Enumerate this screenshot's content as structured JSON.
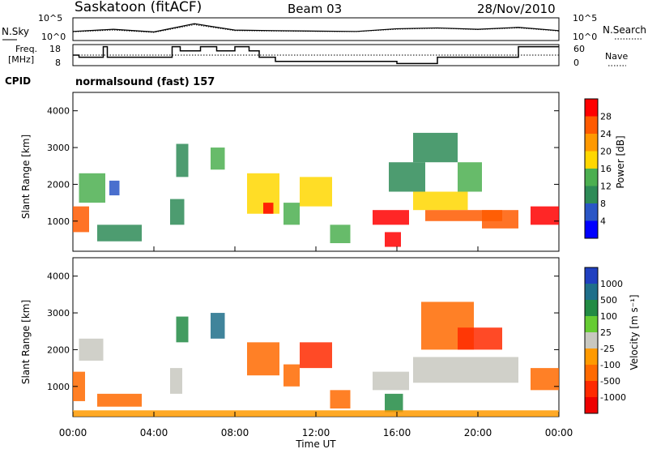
{
  "header": {
    "station": "Saskatoon (fitACF)",
    "beam": "Beam 03",
    "date": "28/Nov/2010"
  },
  "strip": {
    "nsky_label": "N.Sky",
    "nsearch_label": "N.Search",
    "freq_label": "Freq.",
    "freq_unit": "[MHz]",
    "nave_label": "Nave",
    "cpid_label": "CPID",
    "cpid_value": "normalsound (fast) 157",
    "noise_ticks": [
      "10^5",
      "10^0"
    ],
    "freq_ticks": [
      "18",
      "8"
    ],
    "nave_ticks": [
      "60",
      "0"
    ]
  },
  "x_axis": {
    "label": "Time UT",
    "ticks": [
      "00:00",
      "04:00",
      "08:00",
      "12:00",
      "16:00",
      "20:00",
      "00:00"
    ]
  },
  "y_axis": {
    "label": "Slant Range [km]",
    "ticks": [
      "4000",
      "3000",
      "2000",
      "1000"
    ]
  },
  "power_scale": {
    "label": "Power [dB]",
    "ticks": [
      "28",
      "24",
      "20",
      "16",
      "12",
      "8",
      "4"
    ],
    "colors": [
      "#ff0000",
      "#ff5a00",
      "#ff9900",
      "#ffd700",
      "#4caf50",
      "#2e8b57",
      "#2a56c6",
      "#0000ff"
    ]
  },
  "velocity_scale": {
    "label": "Velocity [m s⁻¹]",
    "ticks": [
      "1000",
      "500",
      "100",
      "25",
      "-25",
      "-100",
      "-500",
      "-1000"
    ],
    "colors": [
      "#2040c0",
      "#1f6f8a",
      "#228b44",
      "#66cc33",
      "#c8c8c0",
      "#ff9a00",
      "#ff6a00",
      "#ff2a00",
      "#ee0000"
    ]
  },
  "chart_data": [
    {
      "type": "line",
      "title": "Saskatoon (fitACF)",
      "ylabel": "N.Sky",
      "x": [
        0,
        2,
        4,
        6,
        8,
        10,
        12,
        14,
        16,
        18,
        20,
        22,
        24
      ],
      "series": [
        {
          "name": "N.Sky",
          "values": [
            100,
            300,
            80,
            5000,
            200,
            150,
            120,
            100,
            400,
            600,
            300,
            800,
            150
          ]
        },
        {
          "name": "N.Search",
          "values": [
            80,
            200,
            60,
            3000,
            150,
            120,
            100,
            90,
            300,
            500,
            250,
            600,
            120
          ]
        }
      ],
      "ylim": [
        1,
        100000
      ]
    },
    {
      "type": "line",
      "ylabel": "Freq. [MHz]",
      "x": [
        0,
        0.3,
        1.5,
        1.7,
        3,
        4.9,
        5.3,
        6.3,
        7.1,
        8,
        8.7,
        9.2,
        10,
        12,
        14,
        16,
        17,
        18,
        19,
        20,
        21,
        22,
        22.3,
        24
      ],
      "series": [
        {
          "name": "Freq.",
          "values": [
            13,
            12,
            17,
            12,
            12,
            17,
            15,
            17,
            15,
            17,
            15,
            12,
            10,
            10,
            10,
            9,
            9,
            12,
            12,
            12,
            12,
            17,
            17,
            17
          ]
        },
        {
          "name": "Nave",
          "values": [
            30,
            30,
            30,
            30,
            30,
            30,
            30,
            30,
            30,
            30,
            30,
            30,
            30,
            30,
            30,
            30,
            30,
            30,
            30,
            30,
            30,
            30,
            30,
            30
          ]
        }
      ],
      "ylim": [
        8,
        18
      ]
    },
    {
      "type": "heatmap",
      "ylabel": "Slant Range [km]",
      "xlabel": "",
      "ylim": [
        180,
        4500
      ],
      "xlim": [
        0,
        24
      ],
      "value_label": "Power [dB]",
      "zlim": [
        0,
        30
      ],
      "patches": [
        {
          "t0": 0.0,
          "t1": 0.8,
          "r0": 700,
          "r1": 1400,
          "v": 24
        },
        {
          "t0": 0.3,
          "t1": 1.6,
          "r0": 1500,
          "r1": 2300,
          "v": 10
        },
        {
          "t0": 1.2,
          "t1": 3.4,
          "r0": 450,
          "r1": 900,
          "v": 7
        },
        {
          "t0": 1.8,
          "t1": 2.3,
          "r0": 1700,
          "r1": 2100,
          "v": 6
        },
        {
          "t0": 4.8,
          "t1": 5.5,
          "r0": 900,
          "r1": 1600,
          "v": 8
        },
        {
          "t0": 5.1,
          "t1": 5.7,
          "r0": 2200,
          "r1": 3100,
          "v": 9
        },
        {
          "t0": 6.8,
          "t1": 7.5,
          "r0": 2400,
          "r1": 3000,
          "v": 12
        },
        {
          "t0": 8.6,
          "t1": 10.2,
          "r0": 1200,
          "r1": 2300,
          "v": 16
        },
        {
          "t0": 9.4,
          "t1": 9.9,
          "r0": 1200,
          "r1": 1500,
          "v": 26
        },
        {
          "t0": 10.4,
          "t1": 11.2,
          "r0": 900,
          "r1": 1500,
          "v": 12
        },
        {
          "t0": 11.2,
          "t1": 12.8,
          "r0": 1400,
          "r1": 2200,
          "v": 14
        },
        {
          "t0": 12.7,
          "t1": 13.7,
          "r0": 400,
          "r1": 900,
          "v": 10
        },
        {
          "t0": 14.8,
          "t1": 16.6,
          "r0": 900,
          "r1": 1300,
          "v": 27
        },
        {
          "t0": 15.4,
          "t1": 16.2,
          "r0": 300,
          "r1": 700,
          "v": 28
        },
        {
          "t0": 16.8,
          "t1": 19.5,
          "r0": 1300,
          "r1": 1800,
          "v": 14
        },
        {
          "t0": 17.4,
          "t1": 21.2,
          "r0": 1000,
          "r1": 1300,
          "v": 24
        },
        {
          "t0": 19.0,
          "t1": 20.2,
          "r0": 1800,
          "r1": 2600,
          "v": 10
        },
        {
          "t0": 20.2,
          "t1": 22.0,
          "r0": 800,
          "r1": 1300,
          "v": 22
        },
        {
          "t0": 22.6,
          "t1": 24.0,
          "r0": 900,
          "r1": 1400,
          "v": 26
        },
        {
          "t0": 15.6,
          "t1": 17.4,
          "r0": 1800,
          "r1": 2600,
          "v": 8
        },
        {
          "t0": 16.8,
          "t1": 19.0,
          "r0": 2600,
          "r1": 3400,
          "v": 7
        }
      ]
    },
    {
      "type": "heatmap",
      "ylabel": "Slant Range [km]",
      "xlabel": "Time UT",
      "ylim": [
        180,
        4500
      ],
      "xlim": [
        0,
        24
      ],
      "value_label": "Velocity [m s⁻¹]",
      "zlim": [
        -1000,
        1000
      ],
      "patches": [
        {
          "t0": 0.0,
          "t1": 0.6,
          "r0": 600,
          "r1": 1400,
          "v": -150
        },
        {
          "t0": 0.3,
          "t1": 1.5,
          "r0": 1700,
          "r1": 2300,
          "v": 0
        },
        {
          "t0": 1.2,
          "t1": 3.4,
          "r0": 450,
          "r1": 800,
          "v": -120
        },
        {
          "t0": 4.8,
          "t1": 5.4,
          "r0": 800,
          "r1": 1500,
          "v": 0
        },
        {
          "t0": 5.1,
          "t1": 5.7,
          "r0": 2200,
          "r1": 2900,
          "v": 200
        },
        {
          "t0": 6.8,
          "t1": 7.5,
          "r0": 2300,
          "r1": 3000,
          "v": 300
        },
        {
          "t0": 8.6,
          "t1": 10.2,
          "r0": 1300,
          "r1": 2200,
          "v": -300
        },
        {
          "t0": 10.4,
          "t1": 11.2,
          "r0": 1000,
          "r1": 1600,
          "v": -200
        },
        {
          "t0": 11.2,
          "t1": 12.8,
          "r0": 1500,
          "r1": 2200,
          "v": -400
        },
        {
          "t0": 12.7,
          "t1": 13.7,
          "r0": 400,
          "r1": 900,
          "v": -150
        },
        {
          "t0": 14.8,
          "t1": 16.6,
          "r0": 900,
          "r1": 1400,
          "v": 0
        },
        {
          "t0": 15.4,
          "t1": 16.3,
          "r0": 300,
          "r1": 800,
          "v": 80
        },
        {
          "t0": 16.8,
          "t1": 22.0,
          "r0": 1100,
          "r1": 1800,
          "v": 0
        },
        {
          "t0": 17.2,
          "t1": 19.8,
          "r0": 2000,
          "r1": 3300,
          "v": -250
        },
        {
          "t0": 19.0,
          "t1": 21.2,
          "r0": 2000,
          "r1": 2600,
          "v": -400
        },
        {
          "t0": 22.6,
          "t1": 24.0,
          "r0": 900,
          "r1": 1500,
          "v": -150
        },
        {
          "t0": 0.0,
          "t1": 24.0,
          "r0": 180,
          "r1": 350,
          "v": -60
        }
      ]
    }
  ]
}
